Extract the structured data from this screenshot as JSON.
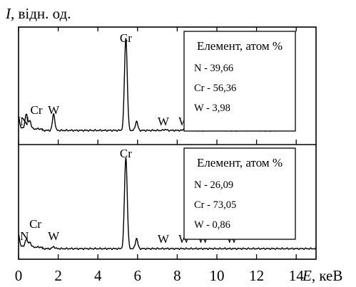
{
  "chart_data": {
    "type": "line",
    "y_axis_label": {
      "symbol": "I",
      "unit": ", відн. од."
    },
    "x_axis_label": {
      "symbol": "E",
      "unit": ", кеВ"
    },
    "xlim": [
      0,
      15
    ],
    "x_ticks": [
      0,
      2,
      4,
      6,
      8,
      10,
      12,
      14
    ],
    "x_tick_labels": [
      "0",
      "2",
      "4",
      "6",
      "8",
      "10",
      "12",
      "14"
    ],
    "grid": false,
    "panels": [
      {
        "name": "top",
        "ylim": [
          0,
          100
        ],
        "x_end": 13.5,
        "baseline": 2,
        "peaks": [
          {
            "label": "N",
            "x": 0.39,
            "y": 17,
            "label_x": 0.3
          },
          {
            "label": "Cr",
            "x": 0.57,
            "y": 10,
            "label_x": 0.9
          },
          {
            "label": "W",
            "x": 1.77,
            "y": 18,
            "label_x": 1.77
          },
          {
            "label": "Cr",
            "x": 5.41,
            "y": 92,
            "label_x": 5.41
          },
          {
            "label": "",
            "x": 5.95,
            "y": 11,
            "label_x": 5.95
          },
          {
            "label": "W",
            "x": 7.39,
            "y": 3,
            "label_x": 7.3
          },
          {
            "label": "W",
            "x": 8.4,
            "y": 5,
            "label_x": 8.35
          },
          {
            "label": "W",
            "x": 9.67,
            "y": 4,
            "label_x": 9.05
          },
          {
            "label": "W",
            "x": 11.3,
            "y": 3,
            "label_x": 10.65
          }
        ],
        "legend": {
          "title": "Елемент, атом %",
          "rows": [
            {
              "element": "N",
              "value": "39,66"
            },
            {
              "element": "Cr",
              "value": "56,36"
            },
            {
              "element": "W",
              "value": "3,98"
            }
          ]
        }
      },
      {
        "name": "bottom",
        "ylim": [
          0,
          100
        ],
        "x_end": 15,
        "baseline": 2,
        "peaks": [
          {
            "label": "N",
            "x": 0.39,
            "y": 10,
            "label_x": 0.3
          },
          {
            "label": "Cr",
            "x": 0.57,
            "y": 7,
            "label_x": 0.85
          },
          {
            "label": "W",
            "x": 1.77,
            "y": 4,
            "label_x": 1.77
          },
          {
            "label": "Cr",
            "x": 5.41,
            "y": 92,
            "label_x": 5.41
          },
          {
            "label": "",
            "x": 5.95,
            "y": 12,
            "label_x": 5.95
          },
          {
            "label": "W",
            "x": 7.39,
            "y": 2,
            "label_x": 7.3
          },
          {
            "label": "W",
            "x": 8.4,
            "y": 2,
            "label_x": 8.35
          },
          {
            "label": "W",
            "x": 9.67,
            "y": 2,
            "label_x": 9.3
          },
          {
            "label": "W",
            "x": 11.3,
            "y": 2,
            "label_x": 10.75
          }
        ],
        "legend": {
          "title": "Елемент, атом %",
          "rows": [
            {
              "element": "N",
              "value": "26,09"
            },
            {
              "element": "Cr",
              "value": "73,05"
            },
            {
              "element": "W",
              "value": "0,86"
            }
          ]
        }
      }
    ]
  }
}
